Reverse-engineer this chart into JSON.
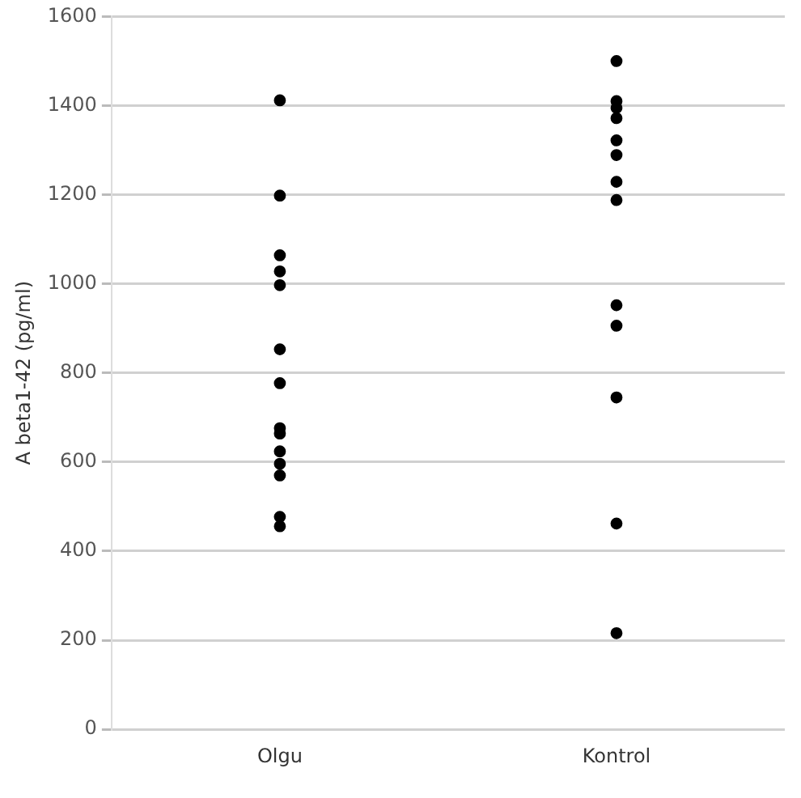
{
  "chart_data": {
    "type": "scatter",
    "ylabel": "A beta1-42 (pg/ml)",
    "categories": [
      "Olgu",
      "Kontrol"
    ],
    "series": [
      {
        "color": "#000000",
        "x": [
          "Olgu",
          "Olgu",
          "Olgu",
          "Olgu",
          "Olgu",
          "Olgu",
          "Olgu",
          "Olgu",
          "Olgu",
          "Olgu",
          "Olgu",
          "Olgu",
          "Olgu",
          "Olgu",
          "Kontrol",
          "Kontrol",
          "Kontrol",
          "Kontrol",
          "Kontrol",
          "Kontrol",
          "Kontrol",
          "Kontrol",
          "Kontrol",
          "Kontrol",
          "Kontrol",
          "Kontrol",
          "Kontrol"
        ],
        "values": [
          1412,
          1198,
          1064,
          1028,
          997,
          853,
          777,
          676,
          664,
          624,
          596,
          570,
          477,
          456,
          1500,
          1410,
          1395,
          1372,
          1322,
          1289,
          1229,
          1188,
          952,
          906,
          745,
          462,
          216
        ]
      }
    ],
    "ylim": [
      0,
      1600
    ],
    "yticks": [
      0,
      200,
      400,
      600,
      800,
      1000,
      1200,
      1400,
      1600
    ],
    "grid": "y",
    "legend": false,
    "marker": "circle"
  }
}
